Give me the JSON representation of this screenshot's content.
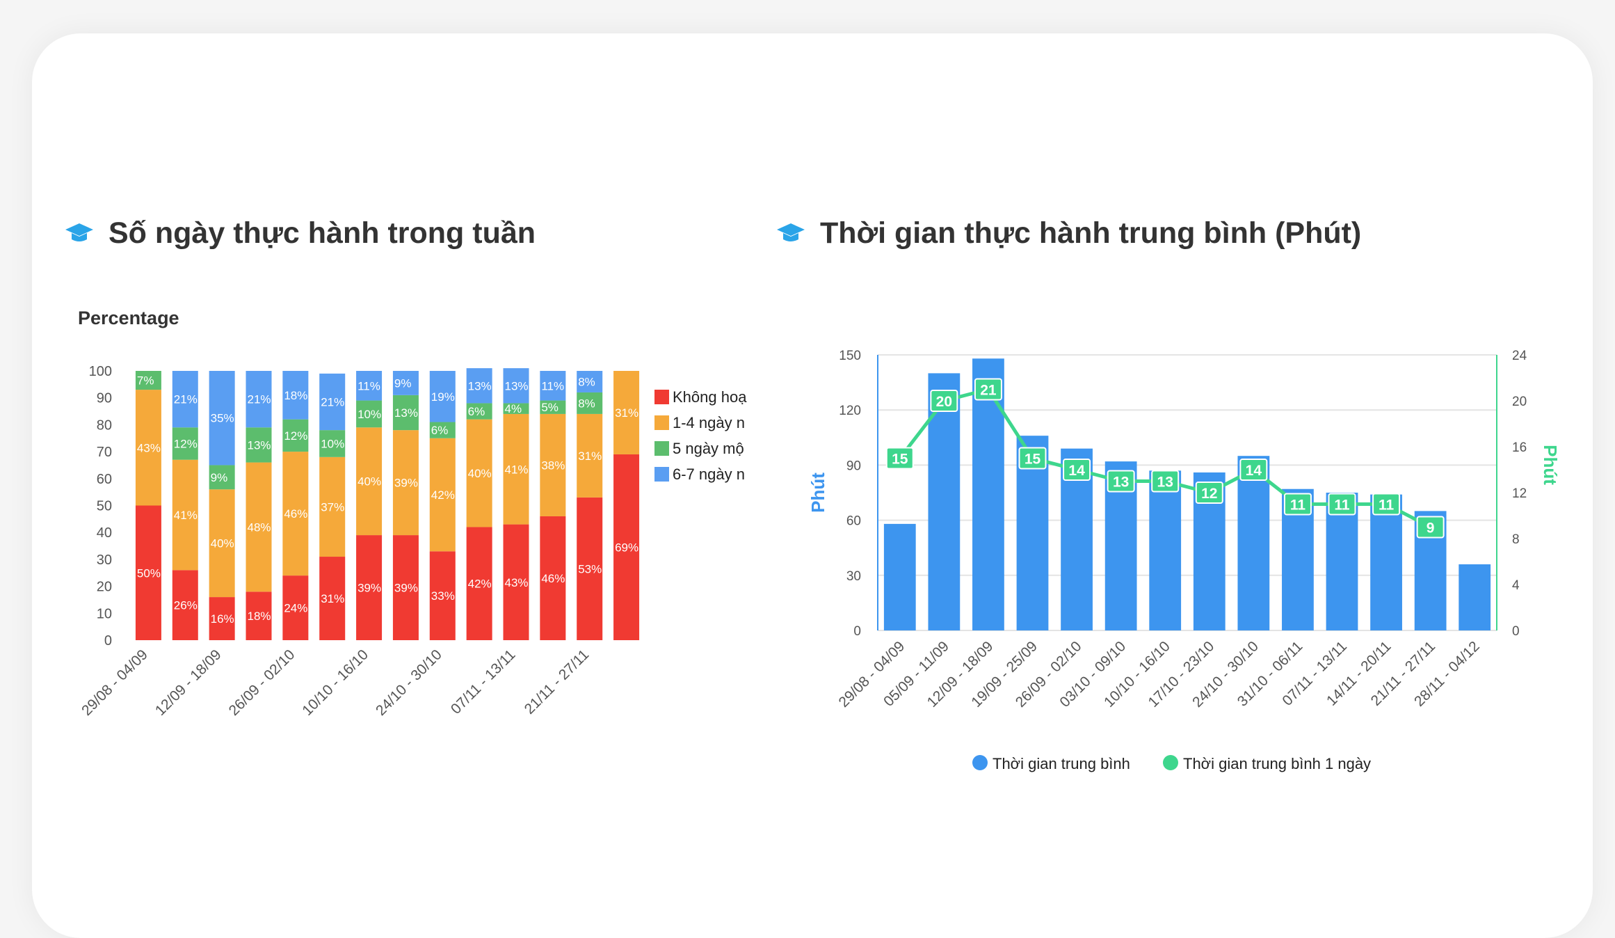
{
  "colors": {
    "red": "#f03a32",
    "orange": "#f5a93a",
    "green": "#5cbd6d",
    "blue": "#5a9ef2",
    "bar_blue": "#3d95ef",
    "line_green": "#3ed68d",
    "icon_blue": "#2aa4e8"
  },
  "left_panel": {
    "title": "Số ngày thực hành trong tuần",
    "icon": "graduation-cap-icon"
  },
  "right_panel": {
    "title": "Thời gian thực hành trung bình (Phút)",
    "icon": "graduation-cap-icon"
  },
  "chart_data": [
    {
      "type": "bar",
      "stacked": true,
      "ylabel": "Percentage",
      "ylim": [
        0,
        100
      ],
      "yticks": [
        0,
        10,
        20,
        30,
        40,
        50,
        60,
        70,
        80,
        90,
        100
      ],
      "x_tick_labels": [
        "29/08 - 04/09",
        "12/09 - 18/09",
        "26/09 - 02/10",
        "10/10 - 16/10",
        "24/10 - 30/10",
        "07/11 - 13/11",
        "21/11 - 27/11"
      ],
      "bar_count": 14,
      "legend": [
        "Không hoạ",
        "1-4 ngày n",
        "5 ngày mộ",
        "6-7 ngày n"
      ],
      "legend_position": "right",
      "series": [
        {
          "name": "Không hoạ",
          "color": "#f03a32",
          "values": [
            50,
            26,
            16,
            18,
            24,
            31,
            39,
            39,
            33,
            42,
            43,
            46,
            53,
            69
          ]
        },
        {
          "name": "1-4 ngày n",
          "color": "#f5a93a",
          "values": [
            43,
            41,
            40,
            48,
            46,
            37,
            40,
            39,
            42,
            40,
            41,
            38,
            31,
            31
          ]
        },
        {
          "name": "5 ngày mộ",
          "color": "#5cbd6d",
          "values": [
            7,
            12,
            9,
            13,
            12,
            10,
            10,
            13,
            6,
            6,
            4,
            5,
            8,
            0
          ]
        },
        {
          "name": "6-7 ngày n",
          "color": "#5a9ef2",
          "values": [
            0,
            21,
            35,
            21,
            18,
            21,
            11,
            9,
            19,
            13,
            13,
            11,
            8,
            0
          ]
        }
      ]
    },
    {
      "type": "bar",
      "combo": "bar+line",
      "categories": [
        "29/08 - 04/09",
        "05/09 - 11/09",
        "12/09 - 18/09",
        "19/09 - 25/09",
        "26/09 - 02/10",
        "03/10 - 09/10",
        "10/10 - 16/10",
        "17/10 - 23/10",
        "24/10 - 30/10",
        "31/10 - 06/11",
        "07/11 - 13/11",
        "14/11 - 20/11",
        "21/11 - 27/11",
        "28/11 - 04/12"
      ],
      "ylabel": "Phút",
      "y2label": "Phút",
      "ylim": [
        0,
        150
      ],
      "yticks": [
        0,
        30,
        60,
        90,
        120,
        150
      ],
      "y2lim": [
        0,
        24
      ],
      "y2ticks": [
        0,
        4,
        8,
        12,
        16,
        20,
        24
      ],
      "grid": true,
      "legend_position": "bottom",
      "series": [
        {
          "name": "Thời gian trung bình",
          "axis": "left",
          "kind": "bar",
          "color": "#3d95ef",
          "values": [
            58,
            140,
            148,
            106,
            99,
            92,
            87,
            86,
            95,
            77,
            75,
            74,
            65,
            36
          ]
        },
        {
          "name": "Thời gian trung bình 1 ngày",
          "axis": "right",
          "kind": "line",
          "color": "#3ed68d",
          "values": [
            15,
            20,
            21,
            15,
            14,
            13,
            13,
            12,
            14,
            11,
            11,
            11,
            9,
            null
          ]
        }
      ]
    }
  ]
}
